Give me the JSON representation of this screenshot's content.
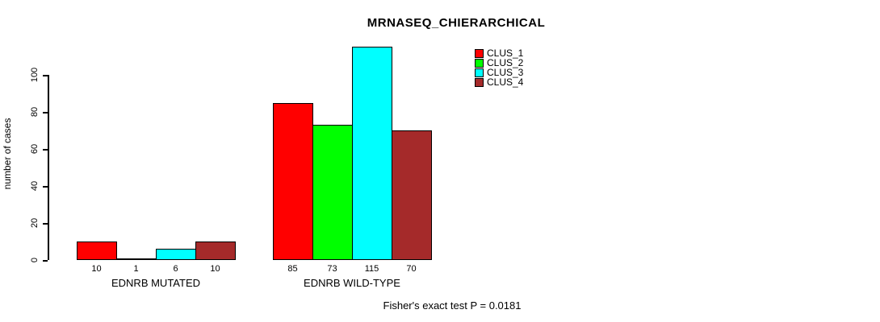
{
  "title": "MRNASEQ_CHIERARCHICAL",
  "chart_data": {
    "type": "bar",
    "title": "MRNASEQ_CHIERARCHICAL",
    "xlabel": "",
    "ylabel": "number of cases",
    "ylim": [
      0,
      115
    ],
    "yticks": [
      0,
      20,
      40,
      60,
      80,
      100
    ],
    "grid": false,
    "legend_position": "top-right",
    "categories": [
      "EDNRB MUTATED",
      "EDNRB WILD-TYPE"
    ],
    "series": [
      {
        "name": "CLUS_1",
        "color": "#ff0000",
        "values": [
          10,
          85
        ]
      },
      {
        "name": "CLUS_2",
        "color": "#00ff00",
        "values": [
          1,
          73
        ]
      },
      {
        "name": "CLUS_3",
        "color": "#00ffff",
        "values": [
          6,
          115
        ]
      },
      {
        "name": "CLUS_4",
        "color": "#a52a2a",
        "values": [
          10,
          70
        ]
      }
    ],
    "bar_value_labels": {
      "EDNRB MUTATED": [
        10,
        1,
        6,
        10
      ],
      "EDNRB WILD-TYPE": [
        85,
        73,
        115,
        70
      ]
    },
    "annotation": "Fisher's exact test P = 0.0181"
  },
  "colors": {
    "background": "#ffffff",
    "bar_border": "#000000",
    "text": "#000000"
  }
}
